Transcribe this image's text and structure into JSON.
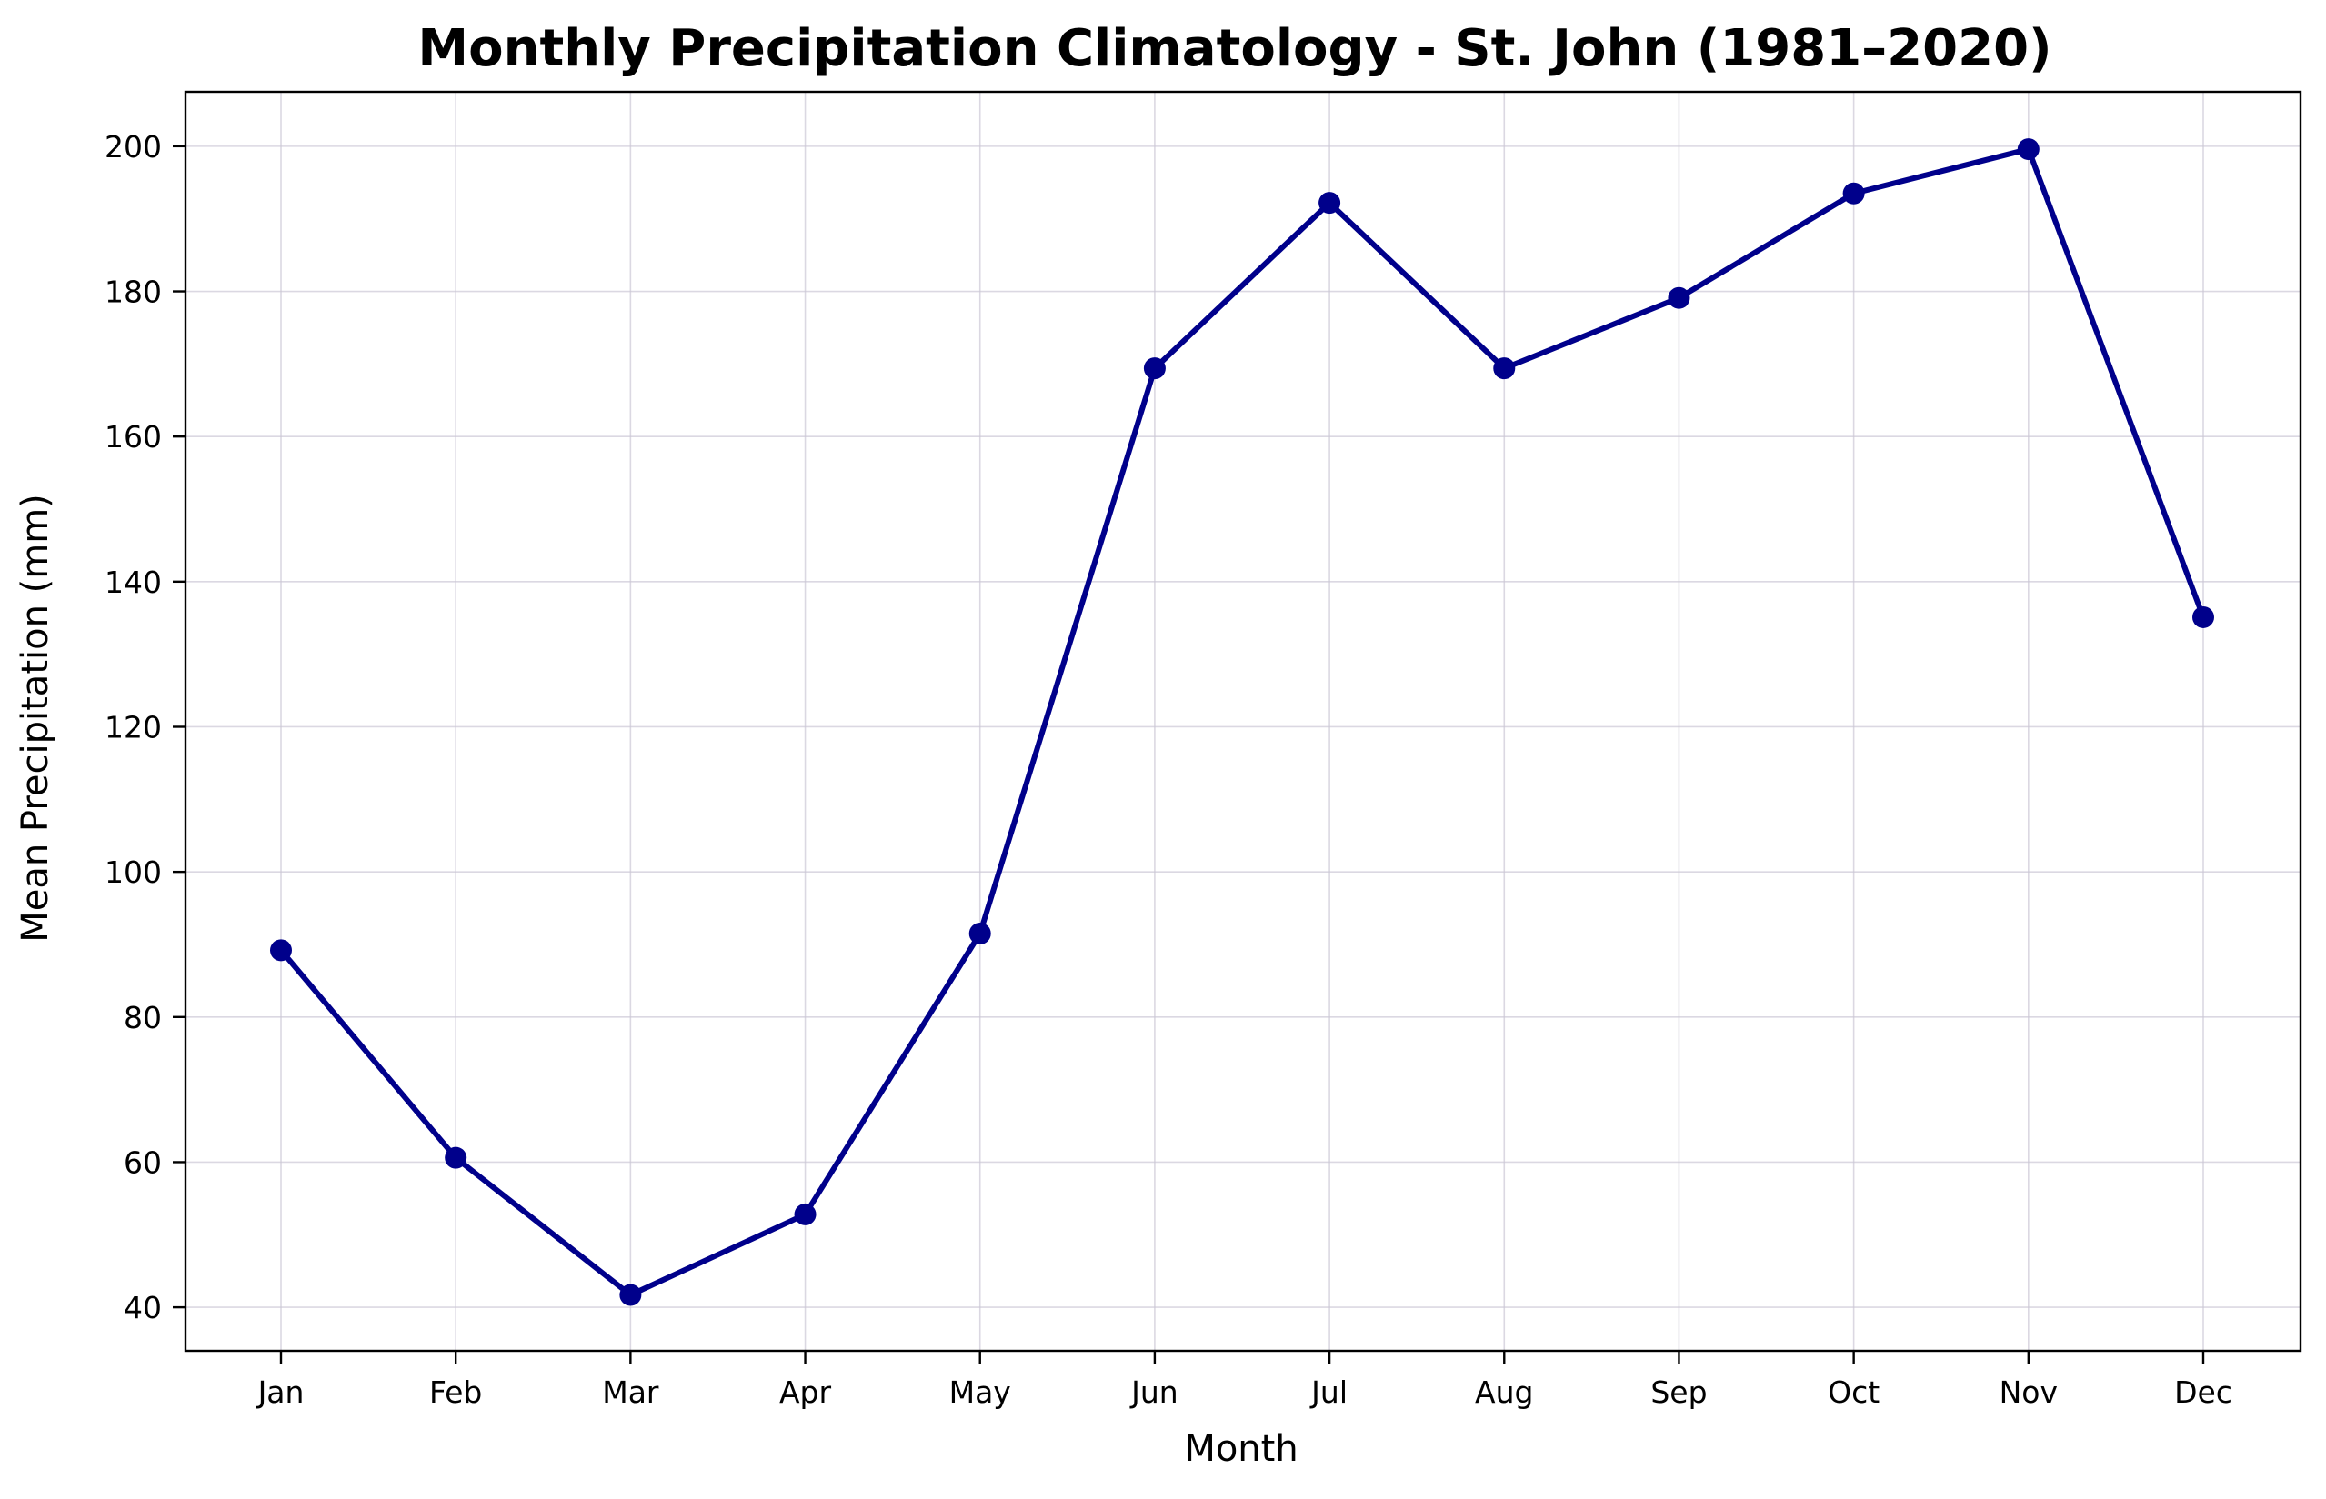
{
  "chart_data": {
    "type": "line",
    "title": "Monthly Precipitation Climatology - St. John (1981–2020)",
    "xlabel": "Month",
    "ylabel": "Mean Precipitation (mm)",
    "categories": [
      "Jan",
      "Feb",
      "Mar",
      "Apr",
      "May",
      "Jun",
      "Jul",
      "Aug",
      "Sep",
      "Oct",
      "Nov",
      "Dec"
    ],
    "series": [
      {
        "values": [
          89.2,
          60.6,
          41.7,
          52.8,
          91.5,
          169.4,
          192.2,
          169.4,
          179.1,
          193.5,
          199.6,
          135.1
        ]
      }
    ],
    "ylim": [
      34,
      207.5
    ],
    "yticks": [
      40,
      60,
      80,
      100,
      120,
      140,
      160,
      180,
      200
    ],
    "line_color": "#00008b",
    "marker": "circle",
    "grid": true
  }
}
